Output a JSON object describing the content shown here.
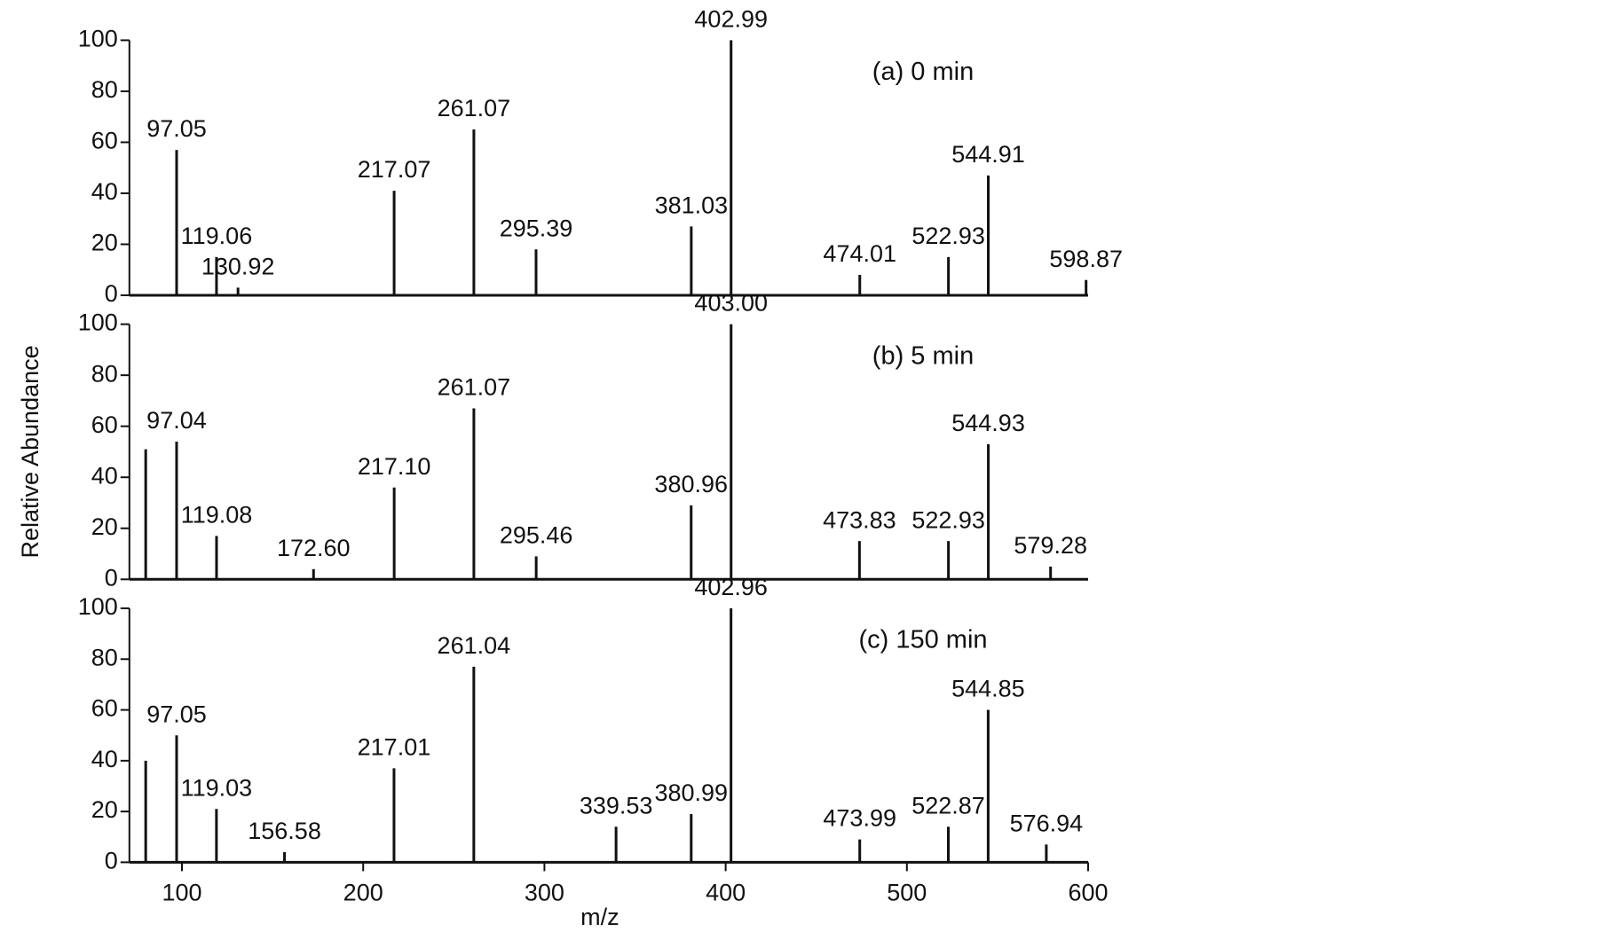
{
  "chart_data": [
    {
      "type": "spectrum",
      "title": "(a) 0 min",
      "color": "#111111",
      "x": [
        97.05,
        119.06,
        130.92,
        217.07,
        261.07,
        295.39,
        381.03,
        402.99,
        474.01,
        522.93,
        544.91,
        598.87
      ],
      "peak_labels": [
        "97.05",
        "119.06",
        "130.92",
        "217.07",
        "261.07",
        "295.39",
        "381.03",
        "402.99",
        "474.01",
        "522.93",
        "544.91",
        "598.87"
      ],
      "values": [
        57,
        15,
        3,
        41,
        65,
        18,
        27,
        100,
        8,
        15,
        47,
        6
      ],
      "xlim": [
        71,
        600
      ],
      "ylim": [
        0,
        100
      ],
      "yticks": [
        0,
        20,
        40,
        60,
        80,
        100
      ]
    },
    {
      "type": "spectrum",
      "title": "(b) 5 min",
      "color": "#111111",
      "ylabel": "Relative Abundance",
      "x": [
        80,
        97.04,
        119.08,
        172.6,
        217.1,
        261.07,
        295.46,
        380.96,
        403.0,
        473.83,
        522.93,
        544.93,
        579.28
      ],
      "peak_labels": [
        null,
        "97.04",
        "119.08",
        "172.60",
        "217.10",
        "261.07",
        "295.46",
        "380.96",
        "403.00",
        "473.83",
        "522.93",
        "544.93",
        "579.28"
      ],
      "values": [
        51,
        54,
        17,
        4,
        36,
        67,
        9,
        29,
        100,
        15,
        15,
        53,
        5
      ],
      "xlim": [
        71,
        600
      ],
      "ylim": [
        0,
        100
      ],
      "yticks": [
        0,
        20,
        40,
        60,
        80,
        100
      ]
    },
    {
      "type": "spectrum",
      "title": "(c) 150 min",
      "color": "#111111",
      "xlabel": "m/z",
      "x": [
        80,
        97.05,
        119.03,
        156.58,
        217.01,
        261.04,
        339.53,
        380.99,
        402.96,
        473.99,
        522.87,
        544.85,
        576.94
      ],
      "peak_labels": [
        null,
        "97.05",
        "119.03",
        "156.58",
        "217.01",
        "261.04",
        "339.53",
        "380.99",
        "402.96",
        "473.99",
        "522.87",
        "544.85",
        "576.94"
      ],
      "values": [
        40,
        50,
        21,
        4,
        37,
        77,
        14,
        19,
        100,
        9,
        14,
        60,
        7
      ],
      "xlim": [
        71,
        600
      ],
      "ylim": [
        0,
        100
      ],
      "yticks": [
        0,
        20,
        40,
        60,
        80,
        100
      ],
      "xticks": [
        100,
        200,
        300,
        400,
        500,
        600
      ]
    }
  ]
}
